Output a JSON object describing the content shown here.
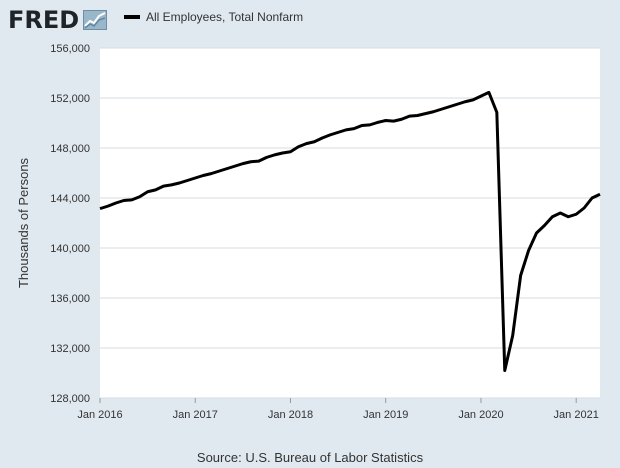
{
  "header": {
    "logo_text": "FRED",
    "legend_label": "All Employees, Total Nonfarm"
  },
  "footer": {
    "source": "Source: U.S. Bureau of Labor Statistics"
  },
  "colors": {
    "background": "#e1e9f0",
    "plot_background": "#ffffff",
    "series_line": "#000000",
    "grid": "#d6dde3"
  },
  "chart_data": {
    "type": "line",
    "ylabel": "Thousands of Persons",
    "ylim": [
      128000,
      156000
    ],
    "y_ticks": [
      128000,
      132000,
      136000,
      140000,
      144000,
      148000,
      152000,
      156000
    ],
    "y_tick_labels": [
      "128,000",
      "132,000",
      "136,000",
      "140,000",
      "144,000",
      "148,000",
      "152,000",
      "156,000"
    ],
    "x_ticks": [
      "2016-01",
      "2017-01",
      "2018-01",
      "2019-01",
      "2020-01",
      "2021-01"
    ],
    "x_tick_labels": [
      "Jan 2016",
      "Jan 2017",
      "Jan 2018",
      "Jan 2019",
      "Jan 2020",
      "Jan 2021"
    ],
    "xlim": [
      "2016-01",
      "2021-04"
    ],
    "grid": true,
    "legend_position": "top",
    "series": [
      {
        "name": "All Employees, Total Nonfarm",
        "x": [
          "2016-01",
          "2016-02",
          "2016-03",
          "2016-04",
          "2016-05",
          "2016-06",
          "2016-07",
          "2016-08",
          "2016-09",
          "2016-10",
          "2016-11",
          "2016-12",
          "2017-01",
          "2017-02",
          "2017-03",
          "2017-04",
          "2017-05",
          "2017-06",
          "2017-07",
          "2017-08",
          "2017-09",
          "2017-10",
          "2017-11",
          "2017-12",
          "2018-01",
          "2018-02",
          "2018-03",
          "2018-04",
          "2018-05",
          "2018-06",
          "2018-07",
          "2018-08",
          "2018-09",
          "2018-10",
          "2018-11",
          "2018-12",
          "2019-01",
          "2019-02",
          "2019-03",
          "2019-04",
          "2019-05",
          "2019-06",
          "2019-07",
          "2019-08",
          "2019-09",
          "2019-10",
          "2019-11",
          "2019-12",
          "2020-01",
          "2020-02",
          "2020-03",
          "2020-04",
          "2020-05",
          "2020-06",
          "2020-07",
          "2020-08",
          "2020-09",
          "2020-10",
          "2020-11",
          "2020-12",
          "2021-01",
          "2021-02",
          "2021-03",
          "2021-04"
        ],
        "values": [
          143150,
          143350,
          143600,
          143800,
          143850,
          144100,
          144500,
          144650,
          144950,
          145050,
          145200,
          145400,
          145600,
          145800,
          145950,
          146150,
          146350,
          146550,
          146750,
          146900,
          146950,
          147250,
          147450,
          147600,
          147700,
          148100,
          148350,
          148500,
          148800,
          149050,
          149250,
          149450,
          149550,
          149800,
          149850,
          150050,
          150200,
          150150,
          150300,
          150550,
          150600,
          150750,
          150900,
          151100,
          151300,
          151500,
          151700,
          151850,
          152150,
          152450,
          150850,
          130200,
          133000,
          137800,
          139800,
          141200,
          141800,
          142500,
          142800,
          142500,
          142700,
          143200,
          144000,
          144300
        ]
      }
    ]
  }
}
